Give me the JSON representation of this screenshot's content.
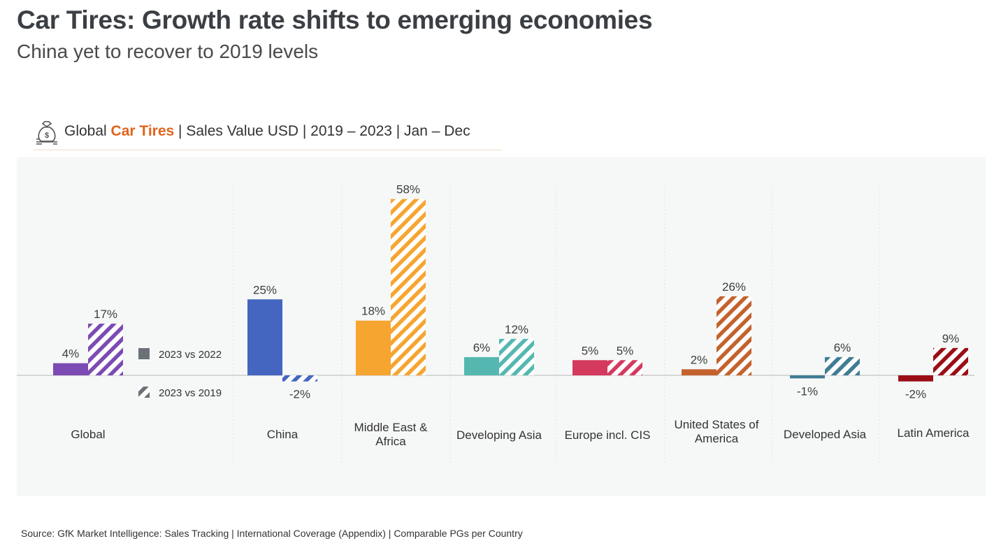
{
  "title": "Car Tires: Growth rate shifts to emerging economies",
  "subtitle": "China yet to recover to 2019 levels",
  "header": {
    "prefix": "Global ",
    "highlight": "Car Tires",
    "suffix": " | Sales Value USD | 2019 – 2023 | Jan – Dec",
    "icon": "money-bag-icon"
  },
  "source": "Source: GfK Market Intelligence: Sales Tracking | International Coverage (Appendix) | Comparable PGs per Country",
  "colors": {
    "accent": "#e0641c",
    "legend_solid": "#6b7177",
    "panel_bg": "#f6f7f7"
  },
  "chart_data": {
    "type": "bar",
    "categories": [
      "Global",
      "China",
      "Middle East & Africa",
      "Developing Asia",
      "Europe incl. CIS",
      "United States of America",
      "Developed Asia",
      "Latin America"
    ],
    "category_colors": [
      "#7b4bb3",
      "#4466c0",
      "#f6a531",
      "#55b8b0",
      "#d43a5e",
      "#c4622d",
      "#3f7d94",
      "#9b0e16"
    ],
    "series": [
      {
        "name": "2023 vs 2022",
        "style": "solid",
        "values": [
          4,
          25,
          18,
          6,
          5,
          2,
          -1,
          -2
        ]
      },
      {
        "name": "2023 vs 2019",
        "style": "hatched",
        "values": [
          17,
          -2,
          58,
          12,
          5,
          26,
          6,
          9
        ]
      }
    ],
    "value_labels": [
      [
        "4%",
        "25%",
        "18%",
        "6%",
        "5%",
        "2%",
        "-1%",
        "-2%"
      ],
      [
        "17%",
        "-2%",
        "58%",
        "12%",
        "5%",
        "26%",
        "6%",
        "9%"
      ]
    ],
    "unit": "%",
    "ylim": [
      -5,
      62
    ],
    "grid": false,
    "legend_position": "left, next to Global"
  }
}
